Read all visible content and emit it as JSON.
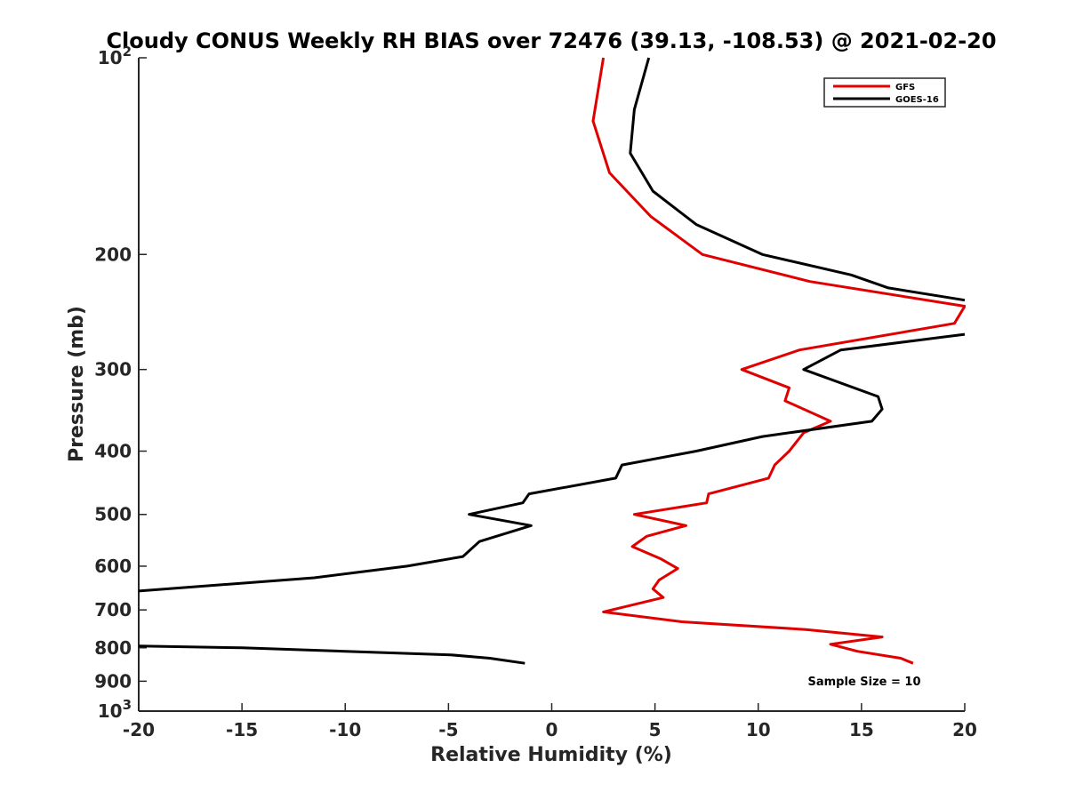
{
  "chart_data": {
    "type": "line",
    "title": "Cloudy CONUS Weekly RH BIAS over 72476 (39.13, -108.53) @ 2021-02-20",
    "xlabel": "Relative Humidity (%)",
    "ylabel": "Pressure (mb)",
    "xlim": [
      -20,
      20
    ],
    "ylim": [
      100,
      1000
    ],
    "y_scale": "log",
    "y_reversed": true,
    "x_ticks": [
      "-20",
      "-15",
      "-10",
      "-5",
      "0",
      "5",
      "10",
      "15",
      "20"
    ],
    "y_ticks": [
      {
        "value": 100,
        "base": "10",
        "exp": "2"
      },
      {
        "value": 200,
        "label": "200"
      },
      {
        "value": 300,
        "label": "300"
      },
      {
        "value": 400,
        "label": "400"
      },
      {
        "value": 500,
        "label": "500"
      },
      {
        "value": 600,
        "label": "600"
      },
      {
        "value": 700,
        "label": "700"
      },
      {
        "value": 800,
        "label": "800"
      },
      {
        "value": 900,
        "label": "900"
      },
      {
        "value": 1000,
        "base": "10",
        "exp": "3"
      }
    ],
    "legend_position": "top-right",
    "annotation": "Sample Size = 10",
    "series": [
      {
        "name": "GFS",
        "color": "#e00000",
        "points": [
          [
            2.5,
            100
          ],
          [
            2.0,
            125
          ],
          [
            2.8,
            150
          ],
          [
            4.8,
            175
          ],
          [
            7.3,
            200
          ],
          [
            12.5,
            220
          ],
          [
            20.0,
            240
          ],
          [
            19.5,
            255
          ],
          [
            12.0,
            280
          ],
          [
            9.2,
            300
          ],
          [
            11.5,
            320
          ],
          [
            11.3,
            335
          ],
          [
            13.5,
            360
          ],
          [
            12.2,
            375
          ],
          [
            11.5,
            400
          ],
          [
            10.8,
            420
          ],
          [
            10.5,
            440
          ],
          [
            7.6,
            465
          ],
          [
            7.5,
            480
          ],
          [
            4.0,
            500
          ],
          [
            6.5,
            520
          ],
          [
            4.6,
            540
          ],
          [
            3.9,
            560
          ],
          [
            5.3,
            585
          ],
          [
            6.1,
            605
          ],
          [
            5.2,
            630
          ],
          [
            4.9,
            650
          ],
          [
            5.4,
            670
          ],
          [
            2.5,
            705
          ],
          [
            6.3,
            730
          ],
          [
            12.3,
            750
          ],
          [
            16.0,
            770
          ],
          [
            13.5,
            790
          ],
          [
            14.8,
            810
          ],
          [
            16.9,
            830
          ],
          [
            17.5,
            845
          ]
        ]
      },
      {
        "name": "GOES-16",
        "color": "#000000",
        "points": [
          [
            4.7,
            100
          ],
          [
            4.0,
            120
          ],
          [
            3.8,
            140
          ],
          [
            4.9,
            160
          ],
          [
            7.0,
            180
          ],
          [
            10.2,
            200
          ],
          [
            14.5,
            215
          ],
          [
            16.3,
            225
          ],
          [
            20.0,
            235
          ],
          [
            null,
            null
          ],
          [
            20.0,
            265
          ],
          [
            14.0,
            280
          ],
          [
            12.2,
            300
          ],
          [
            15.8,
            330
          ],
          [
            16.0,
            345
          ],
          [
            15.5,
            360
          ],
          [
            10.2,
            380
          ],
          [
            7.0,
            400
          ],
          [
            3.4,
            420
          ],
          [
            3.1,
            440
          ],
          [
            -1.1,
            465
          ],
          [
            -1.4,
            480
          ],
          [
            -4.0,
            500
          ],
          [
            -1.0,
            520
          ],
          [
            -3.5,
            550
          ],
          [
            -4.3,
            580
          ],
          [
            -7.0,
            600
          ],
          [
            -11.5,
            625
          ],
          [
            -20.0,
            655
          ],
          [
            null,
            null
          ],
          [
            -20.0,
            795
          ],
          [
            -15.0,
            800
          ],
          [
            -10.0,
            810
          ],
          [
            -4.9,
            820
          ],
          [
            -3.0,
            830
          ],
          [
            -1.3,
            845
          ]
        ]
      }
    ]
  }
}
